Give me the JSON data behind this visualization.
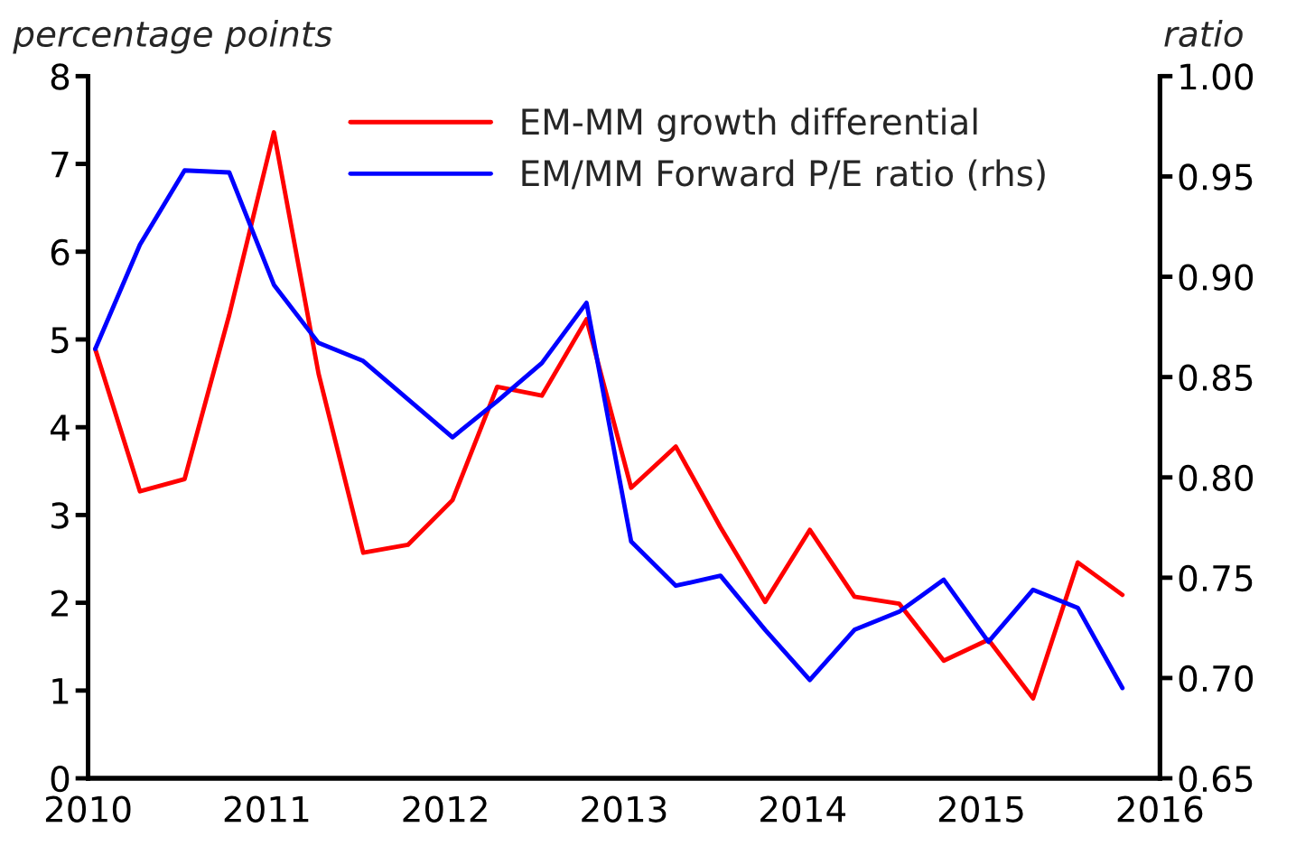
{
  "chart_data": {
    "type": "line",
    "ylabel": "percentage points",
    "y2label": "ratio",
    "xlim": [
      2010,
      2016
    ],
    "xticks": [
      2010,
      2011,
      2012,
      2013,
      2014,
      2015,
      2016
    ],
    "ylim": [
      0,
      8
    ],
    "yticks": [
      0,
      1,
      2,
      3,
      4,
      5,
      6,
      7,
      8
    ],
    "y2lim": [
      0.65,
      1.0
    ],
    "y2ticks": [
      {
        "value": 0.65,
        "label": "0.65"
      },
      {
        "value": 0.7,
        "label": "0.70"
      },
      {
        "value": 0.75,
        "label": "0.75"
      },
      {
        "value": 0.8,
        "label": "0.80"
      },
      {
        "value": 0.85,
        "label": "0.85"
      },
      {
        "value": 0.9,
        "label": "0.90"
      },
      {
        "value": 0.95,
        "label": "0.95"
      },
      {
        "value": 1.0,
        "label": "1.00"
      }
    ],
    "x": [
      2010.04,
      2010.29,
      2010.54,
      2010.79,
      2011.04,
      2011.29,
      2011.54,
      2011.79,
      2012.04,
      2012.29,
      2012.54,
      2012.79,
      2013.04,
      2013.29,
      2013.54,
      2013.79,
      2014.04,
      2014.29,
      2014.54,
      2014.79,
      2015.04,
      2015.29,
      2015.54,
      2015.79
    ],
    "series": [
      {
        "name": "EM-MM growth differential",
        "color": "#ff0000",
        "values": [
          4.89,
          3.27,
          3.41,
          5.28,
          7.36,
          4.61,
          2.57,
          2.66,
          3.17,
          4.46,
          4.36,
          5.23,
          3.31,
          3.78,
          2.86,
          2.01,
          2.83,
          2.07,
          1.99,
          1.34,
          1.58,
          0.91,
          2.46,
          2.09
        ]
      },
      {
        "name": "EM/MM Forward P/E ratio (rhs)",
        "color": "#0000ff",
        "axis": "y2",
        "values": [
          0.864,
          0.916,
          0.953,
          0.952,
          0.896,
          0.867,
          0.858,
          0.839,
          0.82,
          0.838,
          0.857,
          0.887,
          0.768,
          0.746,
          0.751,
          0.724,
          0.699,
          0.724,
          0.733,
          0.749,
          0.718,
          0.744,
          0.735,
          0.695
        ]
      }
    ],
    "legend": "top",
    "grid": false,
    "marker": "none",
    "line_style": "solid"
  }
}
